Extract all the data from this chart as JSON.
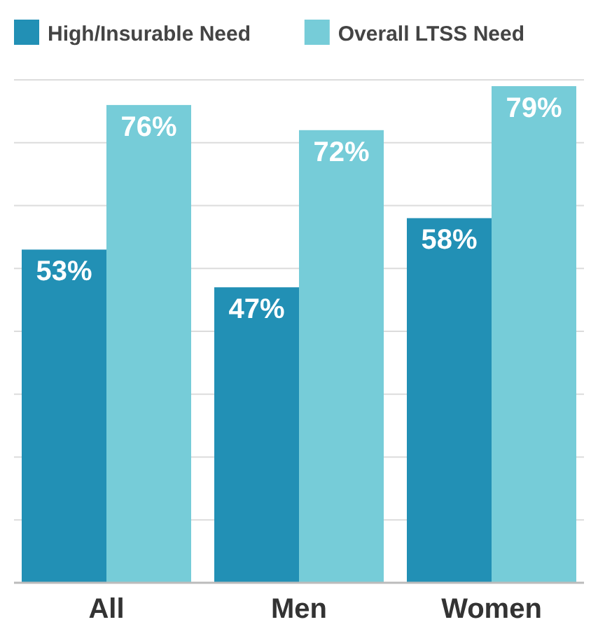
{
  "chart_data": {
    "type": "bar",
    "categories": [
      "All",
      "Men",
      "Women"
    ],
    "series": [
      {
        "name": "High/Insurable Need",
        "color": "#2290b5",
        "values": [
          53,
          47,
          58
        ],
        "value_labels": [
          "53%",
          "47%",
          "58%"
        ]
      },
      {
        "name": "Overall LTSS Need",
        "color": "#76ccd8",
        "values": [
          76,
          72,
          79
        ],
        "value_labels": [
          "76%",
          "72%",
          "79%"
        ]
      }
    ],
    "ylim": [
      0,
      80
    ],
    "yticks": [
      {
        "value": 0,
        "label": null
      },
      {
        "value": 10,
        "label": null
      },
      {
        "value": 20,
        "label": null
      },
      {
        "value": 30,
        "label": null
      },
      {
        "value": 40,
        "label": null
      },
      {
        "value": 50,
        "label": null
      },
      {
        "value": 60,
        "label": null
      },
      {
        "value": 70,
        "label": null
      },
      {
        "value": 80,
        "label": null
      }
    ],
    "grid": "y",
    "legend": "top",
    "tick_labels": "x"
  }
}
